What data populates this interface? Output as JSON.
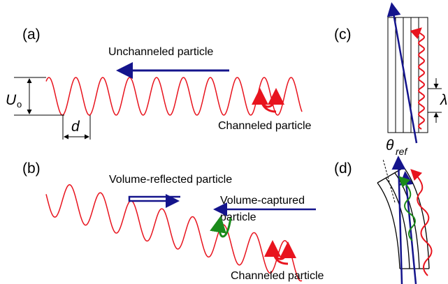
{
  "panel_a": {
    "label": "(a)",
    "arrow_text": "Unchanneled particle",
    "potential_symbol": "U",
    "potential_subscript": "o",
    "period_symbol": "d",
    "channeled_text": "Channeled particle"
  },
  "panel_b": {
    "label": "(b)",
    "reflected_text": "Volume-reflected particle",
    "captured_text_1": "Volume-captured",
    "captured_text_2": "particle",
    "channeled_text": "Channeled particle"
  },
  "panel_c": {
    "label": "(c)",
    "wavelength_symbol": "λ"
  },
  "panel_d": {
    "label": "(d)",
    "angle_symbol": "θ",
    "angle_subscript": "ref"
  }
}
